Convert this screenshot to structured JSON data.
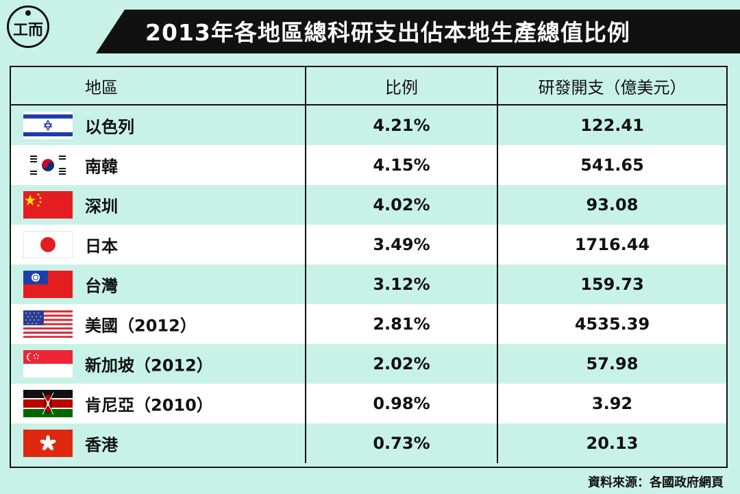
{
  "header": {
    "title": "2013年各地區總科研支出佔本地生產總值比例",
    "logo_text": "工而"
  },
  "chart_data": {
    "type": "table",
    "title": "2013年各地區總科研支出佔本地生產總值比例",
    "columns": [
      "地區",
      "比例",
      "研發開支（億美元）"
    ],
    "rows": [
      {
        "region": "以色列",
        "flag": "israel-flag-icon",
        "ratio": "4.21%",
        "spending": "122.41"
      },
      {
        "region": "南韓",
        "flag": "south-korea-flag-icon",
        "ratio": "4.15%",
        "spending": "541.65"
      },
      {
        "region": "深圳",
        "flag": "china-flag-icon",
        "ratio": "4.02%",
        "spending": "93.08"
      },
      {
        "region": "日本",
        "flag": "japan-flag-icon",
        "ratio": "3.49%",
        "spending": "1716.44"
      },
      {
        "region": "台灣",
        "flag": "taiwan-flag-icon",
        "ratio": "3.12%",
        "spending": "159.73"
      },
      {
        "region": "美國（2012）",
        "flag": "usa-flag-icon",
        "ratio": "2.81%",
        "spending": "4535.39"
      },
      {
        "region": "新加坡（2012）",
        "flag": "singapore-flag-icon",
        "ratio": "2.02%",
        "spending": "57.98"
      },
      {
        "region": "肯尼亞（2010）",
        "flag": "kenya-flag-icon",
        "ratio": "0.98%",
        "spending": "3.92"
      },
      {
        "region": "香港",
        "flag": "hong-kong-flag-icon",
        "ratio": "0.73%",
        "spending": "20.13"
      }
    ]
  },
  "footer": {
    "source": "資料來源：各國政府網頁"
  },
  "colors": {
    "background": "#c8f2e8",
    "title_bar": "#111111",
    "alt_row": "#ffffff"
  }
}
